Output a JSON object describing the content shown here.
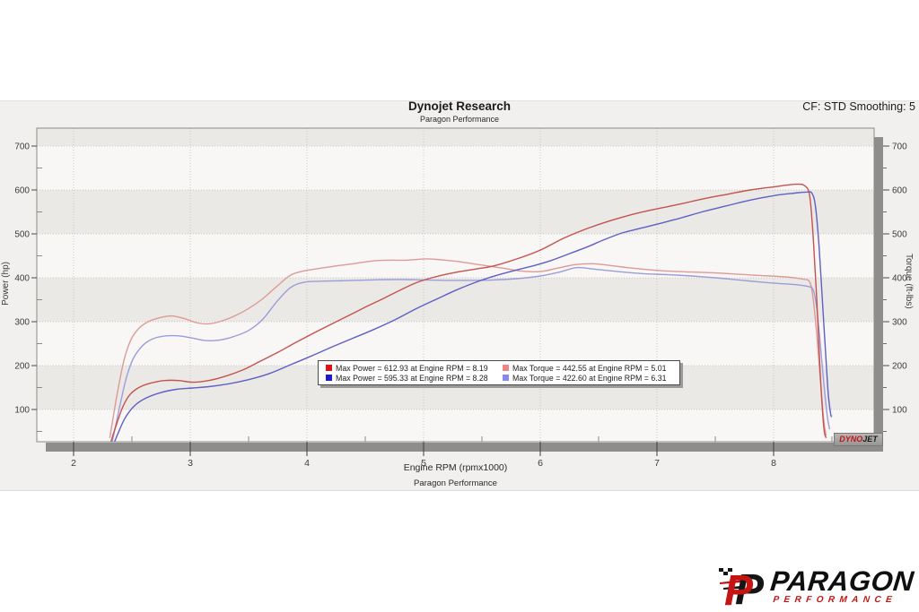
{
  "header": {
    "title": "Dynojet Research",
    "subtitle": "Paragon Performance",
    "right_text": "CF: STD Smoothing: 5"
  },
  "watermark": {
    "dyno": "DYNO",
    "jet": "JET"
  },
  "footer_logo": {
    "name": "PARAGON",
    "sub": "PERFORMANCE"
  },
  "chart_data": {
    "type": "line",
    "title": "Dynojet Research",
    "subtitle": "Paragon Performance",
    "xlabel": "Engine RPM (rpmx1000)",
    "xlabel_sub": "Paragon Performance",
    "ylabel_left": "Power (hp)",
    "ylabel_right": "Torque (ft-lbs)",
    "x_ticks": [
      2,
      3,
      4,
      5,
      6,
      7,
      8
    ],
    "y_ticks": [
      100,
      200,
      300,
      400,
      500,
      600,
      700
    ],
    "y_minor_step": 50,
    "xlim": [
      1.68,
      8.85
    ],
    "ylim": [
      27,
      741
    ],
    "grid": "dotted",
    "bands": "alternating 100-unit white/gray horizontal stripes",
    "legend_position": "center-bottom",
    "colors": {
      "plot_white_band": "#f8f7f5",
      "plot_gray_band": "#eae9e6",
      "plot_border": "#8b8a88",
      "shadow": "#8e8d8b",
      "grid_dotted": "#c9c8c5",
      "tick_text": "#3b3b3b"
    },
    "series": [
      {
        "name": "Max Power = 612.93 at Engine RPM = 8.19",
        "kind": "power",
        "run": 1,
        "max_value": 612.93,
        "max_rpm": 8.19,
        "swatch": "#e01212",
        "line_color": "#c4524f",
        "points": [
          [
            2.31,
            18
          ],
          [
            2.36,
            60
          ],
          [
            2.42,
            105
          ],
          [
            2.48,
            133
          ],
          [
            2.56,
            150
          ],
          [
            2.66,
            160
          ],
          [
            2.78,
            166
          ],
          [
            2.9,
            166
          ],
          [
            3.02,
            162
          ],
          [
            3.14,
            165
          ],
          [
            3.28,
            174
          ],
          [
            3.45,
            190
          ],
          [
            3.6,
            210
          ],
          [
            3.75,
            230
          ],
          [
            3.9,
            252
          ],
          [
            4.05,
            273
          ],
          [
            4.2,
            293
          ],
          [
            4.35,
            313
          ],
          [
            4.5,
            333
          ],
          [
            4.65,
            352
          ],
          [
            4.8,
            372
          ],
          [
            4.95,
            390
          ],
          [
            5.1,
            402
          ],
          [
            5.27,
            412
          ],
          [
            5.45,
            420
          ],
          [
            5.6,
            427
          ],
          [
            5.8,
            443
          ],
          [
            6.0,
            463
          ],
          [
            6.2,
            490
          ],
          [
            6.4,
            512
          ],
          [
            6.6,
            530
          ],
          [
            6.8,
            545
          ],
          [
            7.0,
            557
          ],
          [
            7.2,
            568
          ],
          [
            7.4,
            580
          ],
          [
            7.6,
            590
          ],
          [
            7.8,
            600
          ],
          [
            8.0,
            607
          ],
          [
            8.19,
            613
          ],
          [
            8.27,
            609
          ],
          [
            8.31,
            585
          ],
          [
            8.34,
            490
          ],
          [
            8.37,
            350
          ],
          [
            8.4,
            180
          ],
          [
            8.43,
            60
          ],
          [
            8.45,
            35
          ]
        ]
      },
      {
        "name": "Max Torque = 442.55 at Engine RPM = 5.01",
        "kind": "torque",
        "run": 1,
        "max_value": 442.55,
        "max_rpm": 5.01,
        "swatch": "#f08383",
        "line_color": "#dd9a97",
        "points": [
          [
            2.31,
            35
          ],
          [
            2.37,
            130
          ],
          [
            2.43,
            210
          ],
          [
            2.49,
            258
          ],
          [
            2.56,
            285
          ],
          [
            2.64,
            300
          ],
          [
            2.74,
            309
          ],
          [
            2.84,
            313
          ],
          [
            2.95,
            307
          ],
          [
            3.05,
            298
          ],
          [
            3.15,
            295
          ],
          [
            3.25,
            300
          ],
          [
            3.38,
            313
          ],
          [
            3.5,
            330
          ],
          [
            3.62,
            352
          ],
          [
            3.74,
            380
          ],
          [
            3.86,
            406
          ],
          [
            3.98,
            416
          ],
          [
            4.1,
            421
          ],
          [
            4.25,
            427
          ],
          [
            4.4,
            432
          ],
          [
            4.55,
            438
          ],
          [
            4.7,
            440
          ],
          [
            4.85,
            440
          ],
          [
            5.01,
            443
          ],
          [
            5.15,
            441
          ],
          [
            5.3,
            437
          ],
          [
            5.5,
            429
          ],
          [
            5.7,
            421
          ],
          [
            5.85,
            415
          ],
          [
            6.0,
            414
          ],
          [
            6.15,
            422
          ],
          [
            6.3,
            430
          ],
          [
            6.45,
            432
          ],
          [
            6.6,
            428
          ],
          [
            6.75,
            423
          ],
          [
            6.9,
            419
          ],
          [
            7.1,
            415
          ],
          [
            7.3,
            413
          ],
          [
            7.5,
            411
          ],
          [
            7.7,
            408
          ],
          [
            7.9,
            405
          ],
          [
            8.1,
            402
          ],
          [
            8.25,
            397
          ],
          [
            8.31,
            390
          ],
          [
            8.34,
            350
          ],
          [
            8.37,
            270
          ],
          [
            8.4,
            170
          ],
          [
            8.43,
            75
          ],
          [
            8.45,
            40
          ]
        ]
      },
      {
        "name": "Max Power = 595.33 at Engine RPM = 8.28",
        "kind": "power",
        "run": 2,
        "max_value": 595.33,
        "max_rpm": 8.28,
        "swatch": "#1c1ccd",
        "line_color": "#5f5fc6",
        "points": [
          [
            2.33,
            12
          ],
          [
            2.38,
            45
          ],
          [
            2.44,
            80
          ],
          [
            2.52,
            108
          ],
          [
            2.62,
            126
          ],
          [
            2.74,
            138
          ],
          [
            2.88,
            146
          ],
          [
            3.02,
            149
          ],
          [
            3.16,
            152
          ],
          [
            3.32,
            158
          ],
          [
            3.5,
            168
          ],
          [
            3.68,
            182
          ],
          [
            3.86,
            202
          ],
          [
            4.04,
            222
          ],
          [
            4.22,
            243
          ],
          [
            4.4,
            263
          ],
          [
            4.58,
            283
          ],
          [
            4.76,
            305
          ],
          [
            4.94,
            330
          ],
          [
            5.1,
            350
          ],
          [
            5.28,
            372
          ],
          [
            5.45,
            390
          ],
          [
            5.62,
            405
          ],
          [
            5.8,
            418
          ],
          [
            5.95,
            428
          ],
          [
            6.1,
            440
          ],
          [
            6.25,
            455
          ],
          [
            6.4,
            470
          ],
          [
            6.55,
            487
          ],
          [
            6.7,
            502
          ],
          [
            6.85,
            512
          ],
          [
            7.0,
            522
          ],
          [
            7.2,
            536
          ],
          [
            7.4,
            551
          ],
          [
            7.6,
            564
          ],
          [
            7.8,
            577
          ],
          [
            8.0,
            587
          ],
          [
            8.15,
            592
          ],
          [
            8.28,
            595
          ],
          [
            8.33,
            592
          ],
          [
            8.36,
            560
          ],
          [
            8.39,
            470
          ],
          [
            8.42,
            340
          ],
          [
            8.45,
            210
          ],
          [
            8.47,
            130
          ],
          [
            8.49,
            88
          ],
          [
            8.5,
            85
          ]
        ]
      },
      {
        "name": "Max Torque = 422.60 at Engine RPM = 6.31",
        "kind": "torque",
        "run": 2,
        "max_value": 422.6,
        "max_rpm": 6.31,
        "swatch": "#8787ef",
        "line_color": "#9c9cd9",
        "points": [
          [
            2.33,
            25
          ],
          [
            2.39,
            100
          ],
          [
            2.45,
            170
          ],
          [
            2.51,
            215
          ],
          [
            2.59,
            245
          ],
          [
            2.67,
            260
          ],
          [
            2.77,
            267
          ],
          [
            2.89,
            268
          ],
          [
            3.01,
            263
          ],
          [
            3.13,
            257
          ],
          [
            3.25,
            258
          ],
          [
            3.37,
            266
          ],
          [
            3.5,
            280
          ],
          [
            3.62,
            305
          ],
          [
            3.74,
            345
          ],
          [
            3.86,
            378
          ],
          [
            3.98,
            390
          ],
          [
            4.1,
            392
          ],
          [
            4.25,
            393
          ],
          [
            4.4,
            394
          ],
          [
            4.55,
            395
          ],
          [
            4.7,
            396
          ],
          [
            4.85,
            396
          ],
          [
            5.0,
            395
          ],
          [
            5.2,
            394
          ],
          [
            5.4,
            394
          ],
          [
            5.6,
            395
          ],
          [
            5.8,
            398
          ],
          [
            6.0,
            404
          ],
          [
            6.15,
            412
          ],
          [
            6.31,
            423
          ],
          [
            6.45,
            420
          ],
          [
            6.6,
            416
          ],
          [
            6.75,
            412
          ],
          [
            6.9,
            409
          ],
          [
            7.1,
            407
          ],
          [
            7.3,
            404
          ],
          [
            7.5,
            400
          ],
          [
            7.7,
            395
          ],
          [
            7.9,
            390
          ],
          [
            8.05,
            387
          ],
          [
            8.2,
            384
          ],
          [
            8.3,
            380
          ],
          [
            8.34,
            372
          ],
          [
            8.37,
            330
          ],
          [
            8.4,
            250
          ],
          [
            8.43,
            160
          ],
          [
            8.46,
            85
          ],
          [
            8.48,
            55
          ]
        ]
      }
    ]
  }
}
